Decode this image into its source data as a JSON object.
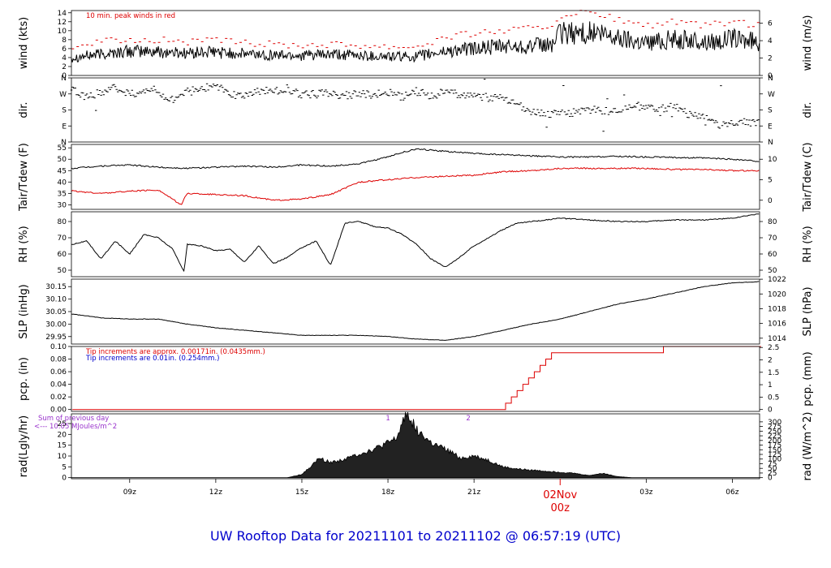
{
  "title": "UW Rooftop Data for 20211101  to  20211102 @ 06:57:19  (UTC)",
  "colors": {
    "series": "#000000",
    "accent": "#dd0000",
    "blue": "#0000cc",
    "purple": "#9933cc"
  },
  "x_axis": {
    "ticks": [
      {
        "label": "09z",
        "hour": 9
      },
      {
        "label": "12z",
        "hour": 12
      },
      {
        "label": "15z",
        "hour": 15
      },
      {
        "label": "18z",
        "hour": 18
      },
      {
        "label": "21z",
        "hour": 21
      },
      {
        "label": "03z",
        "hour": 27
      },
      {
        "label": "06z",
        "hour": 30
      }
    ],
    "date_marker": {
      "date": "02Nov",
      "hour_label": "00z",
      "hour": 24
    },
    "range_hours": [
      6.97,
      30.95
    ]
  },
  "chart_data": [
    {
      "id": "wind",
      "type": "line",
      "ylabel": "wind (kts)",
      "ylabel_right": "wind (m/s)",
      "ylim": [
        0,
        14.5
      ],
      "yticks": [
        0,
        2,
        4,
        6,
        8,
        10,
        12,
        14
      ],
      "yticks_right": [
        0,
        2,
        4,
        6
      ],
      "annotation": "10 min. peak winds in red",
      "series": [
        {
          "role": "speed",
          "color": "#000000",
          "x": [
            7,
            8,
            9,
            10,
            11,
            12,
            13,
            14,
            15,
            16,
            17,
            18,
            19,
            20,
            21,
            22,
            23,
            23.7,
            24,
            25,
            26,
            27,
            28,
            29,
            30,
            31
          ],
          "y": [
            4,
            4.8,
            5.4,
            5.3,
            5,
            5.2,
            4.8,
            4.6,
            4.5,
            4.6,
            4.5,
            4.2,
            4.2,
            5.4,
            6,
            6.4,
            6.6,
            6.8,
            9.4,
            9.6,
            8.4,
            7.4,
            8.2,
            7.4,
            8.2,
            7.4
          ]
        },
        {
          "role": "peak",
          "color": "#dd0000",
          "x": [
            7,
            8,
            9,
            10,
            11,
            12,
            13,
            14,
            15,
            16,
            17,
            18,
            19,
            20,
            21,
            22,
            23,
            23.7,
            24,
            25,
            26,
            27,
            28,
            29,
            30,
            31
          ],
          "y": [
            6.5,
            7.5,
            8,
            8,
            7.5,
            7.8,
            7.2,
            7,
            6.8,
            7,
            6.8,
            6.5,
            6.5,
            8.5,
            9.5,
            10,
            10.5,
            11,
            13.5,
            14,
            12.5,
            11,
            12,
            11,
            12,
            11
          ]
        }
      ]
    },
    {
      "id": "dir",
      "type": "scatter",
      "ylabel": "dir.",
      "ylabel_right": "dir.",
      "ylim": [
        0,
        360
      ],
      "ytick_values": [
        0,
        90,
        180,
        270,
        360
      ],
      "yticks": [
        "N",
        "E",
        "S",
        "W",
        "N"
      ],
      "series": [
        {
          "color": "#000000",
          "x": [
            7,
            7.5,
            8,
            8.5,
            9,
            9.5,
            10,
            10.5,
            11,
            11.5,
            12,
            12.5,
            13,
            13.5,
            14,
            14.5,
            15,
            15.5,
            16,
            16.5,
            17,
            17.5,
            18,
            18.5,
            19,
            19.5,
            20,
            20.5,
            21,
            21.5,
            22,
            22.5,
            23,
            23.5,
            24,
            24.5,
            25,
            25.5,
            26,
            26.5,
            27,
            27.5,
            28,
            28.5,
            29,
            29.5,
            30,
            30.5,
            31
          ],
          "y": [
            290,
            250,
            280,
            310,
            265,
            295,
            275,
            240,
            280,
            300,
            315,
            270,
            255,
            290,
            280,
            300,
            265,
            270,
            275,
            260,
            275,
            265,
            280,
            255,
            285,
            260,
            280,
            270,
            265,
            250,
            245,
            210,
            175,
            150,
            160,
            165,
            185,
            170,
            180,
            210,
            190,
            185,
            200,
            150,
            140,
            95,
            100,
            115,
            100
          ]
        }
      ]
    },
    {
      "id": "temp",
      "type": "line",
      "ylabel": "Tair/Tdew (F)",
      "ylabel_right": "Tair/Tdew (C)",
      "ylim": [
        28,
        56.5
      ],
      "yticks": [
        30,
        35,
        40,
        45,
        50,
        55
      ],
      "yticks_right": [
        0,
        5,
        10
      ],
      "series": [
        {
          "role": "air",
          "color": "#000000",
          "x": [
            7,
            8,
            9,
            10,
            11,
            12,
            13,
            14,
            15,
            16,
            17,
            18,
            18.5,
            19,
            20,
            21,
            22,
            23,
            24,
            25,
            26,
            27,
            28,
            29,
            30,
            31
          ],
          "y": [
            46,
            47,
            47.5,
            46.5,
            46,
            46.5,
            47,
            46.5,
            47.5,
            47,
            48,
            51,
            53,
            54.5,
            53.5,
            52.5,
            52,
            51.5,
            51,
            51,
            51.3,
            51,
            50.8,
            50.5,
            50,
            49
          ]
        },
        {
          "role": "dew",
          "color": "#dd0000",
          "x": [
            7,
            8,
            9,
            10,
            10.8,
            11,
            12,
            13,
            14,
            15,
            16,
            17,
            18,
            19,
            20,
            21,
            22,
            23,
            24,
            25,
            26,
            27,
            28,
            29,
            30,
            31
          ],
          "y": [
            36,
            35,
            36,
            36.5,
            30,
            35,
            34.5,
            34,
            32,
            32.5,
            34.5,
            40,
            41,
            42,
            42.5,
            43,
            44.5,
            45,
            46,
            46,
            46,
            46,
            45.5,
            45.5,
            45,
            45
          ]
        }
      ]
    },
    {
      "id": "rh",
      "type": "line",
      "ylabel": "RH (%)",
      "ylabel_right": "RH (%)",
      "ylim": [
        46,
        86
      ],
      "yticks": [
        50,
        60,
        70,
        80
      ],
      "yticks_right": [
        50,
        60,
        70,
        80
      ],
      "series": [
        {
          "color": "#000000",
          "x": [
            7,
            7.5,
            8,
            8.5,
            9,
            9.5,
            10,
            10.5,
            10.9,
            11,
            11.5,
            12,
            12.5,
            13,
            13.5,
            14,
            14.5,
            15,
            15.5,
            16,
            16.5,
            17,
            17.5,
            18,
            18.5,
            19,
            19.5,
            20,
            20.5,
            21,
            21.5,
            22,
            22.5,
            23,
            24,
            25,
            26,
            27,
            28,
            29,
            30,
            31
          ],
          "y": [
            66,
            68,
            57,
            68,
            60,
            72,
            70,
            63,
            49,
            66,
            65,
            62,
            63,
            55,
            65,
            54,
            58,
            64,
            68,
            53,
            79,
            80,
            77,
            76,
            72,
            66,
            57,
            52,
            58,
            65,
            70,
            75,
            79,
            80,
            82,
            81,
            80,
            80,
            81,
            81,
            82,
            85
          ]
        }
      ]
    },
    {
      "id": "slp",
      "type": "line",
      "ylabel": "SLP (inHg)",
      "ylabel_right": "SLP (hPa)",
      "ylim": [
        29.92,
        30.18
      ],
      "yticks": [
        29.95,
        30.0,
        30.05,
        30.1,
        30.15
      ],
      "ytick_labels": [
        "29.95",
        "30.00",
        "30.05",
        "30.10",
        "30.15"
      ],
      "yticks_right": [
        1014,
        1016,
        1018,
        1020,
        1022
      ],
      "series": [
        {
          "color": "#000000",
          "x": [
            7,
            8,
            9,
            10,
            11,
            12,
            13,
            14,
            15,
            16,
            17,
            18,
            19,
            20,
            21,
            22,
            23,
            24,
            25,
            26,
            27,
            28,
            29,
            30,
            31
          ],
          "y": [
            30.04,
            30.025,
            30.02,
            30.02,
            30.0,
            29.985,
            29.975,
            29.965,
            29.955,
            29.955,
            29.955,
            29.95,
            29.94,
            29.935,
            29.95,
            29.975,
            30.0,
            30.02,
            30.05,
            30.08,
            30.1,
            30.125,
            30.15,
            30.165,
            30.17
          ]
        }
      ]
    },
    {
      "id": "pcp",
      "type": "line",
      "ylabel": "pcp. (in)",
      "ylabel_right": "pcp. (mm)",
      "ylim": [
        -0.003,
        0.1
      ],
      "yticks": [
        0.0,
        0.02,
        0.04,
        0.06,
        0.08,
        0.1
      ],
      "ytick_labels": [
        "0.00",
        "0.02",
        "0.04",
        "0.06",
        "0.08",
        "0.10"
      ],
      "yticks_right": [
        0,
        0.5,
        1,
        1.5,
        2,
        2.5
      ],
      "annotations": [
        {
          "text": "Tip increments are approx. 0.00171in. (0.0435mm.)",
          "color": "#dd0000"
        },
        {
          "text": "Tip increments are 0.01in. (0.254mm.)",
          "color": "#0000cc"
        }
      ],
      "series": [
        {
          "color": "#dd0000",
          "x": [
            7,
            21.9,
            22.1,
            22.3,
            22.5,
            22.7,
            22.9,
            23.1,
            23.3,
            23.5,
            23.7,
            27.6,
            31
          ],
          "y": [
            0,
            0,
            0.01,
            0.02,
            0.03,
            0.04,
            0.05,
            0.06,
            0.07,
            0.08,
            0.09,
            0.1,
            0.1
          ]
        }
      ]
    },
    {
      "id": "rad",
      "type": "area",
      "ylabel": "rad(Lgly/hr)",
      "ylabel_right": "rad (W/m^2)",
      "ylim": [
        -0.5,
        29.5
      ],
      "yticks": [
        0,
        5,
        10,
        15,
        20,
        25
      ],
      "yticks_right": [
        0,
        25,
        50,
        75,
        100,
        125,
        150,
        175,
        200,
        225,
        250,
        275,
        300
      ],
      "annotation_lines": [
        "Sum of previous day",
        "<--- 10.05 MJoules/m^2"
      ],
      "markers": [
        {
          "label": "1",
          "hour": 18
        },
        {
          "label": "2",
          "hour": 20.8
        }
      ],
      "series": [
        {
          "color": "#000000",
          "x": [
            7,
            14.5,
            15,
            15.3,
            15.6,
            16,
            16.5,
            17,
            17.5,
            18,
            18.3,
            18.5,
            18.6,
            18.8,
            19,
            19.5,
            20,
            20.3,
            20.5,
            21,
            21.5,
            22,
            22.5,
            23,
            23.5,
            24,
            24.5,
            25,
            25.5,
            26,
            26.5,
            27,
            31
          ],
          "y": [
            0,
            0,
            1.5,
            5,
            9,
            7,
            8.5,
            11,
            13,
            16,
            18,
            25,
            30,
            27,
            22,
            16,
            13,
            11,
            9,
            10,
            8,
            5,
            4,
            3.5,
            3,
            2.5,
            2,
            1,
            2,
            0.5,
            0,
            0,
            0
          ]
        }
      ]
    }
  ]
}
